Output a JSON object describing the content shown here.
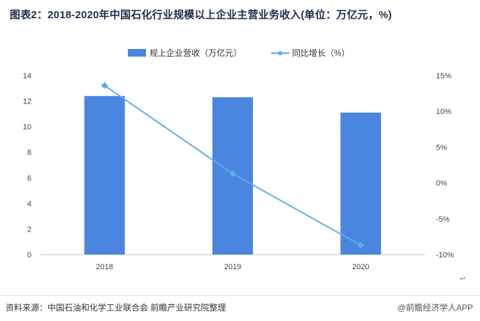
{
  "title": "图表2：2018-2020年中国石化行业规模以上企业主营业务收入(单位：万亿元，%)",
  "source": "资料来源：中国石油和化学工业联合会 前瞻产业研究院整理",
  "brand": "@前瞻经济学人APP",
  "return_mark": "↵",
  "colors": {
    "bar": "#4a86e0",
    "line": "#5aaee8"
  },
  "chart_data": {
    "type": "bar+line",
    "categories": [
      "2018",
      "2019",
      "2020"
    ],
    "series": [
      {
        "name": "规上企业营收（万亿元）",
        "type": "bar",
        "axis": "left",
        "values": [
          12.4,
          12.3,
          11.1
        ]
      },
      {
        "name": "同比增长（%）",
        "type": "line",
        "axis": "right",
        "values": [
          13.6,
          1.3,
          -8.7
        ]
      }
    ],
    "y_left": {
      "min": 0,
      "max": 14,
      "ticks": [
        "0",
        "2",
        "4",
        "6",
        "8",
        "10",
        "12",
        "14"
      ]
    },
    "y_right": {
      "min": -10,
      "max": 15,
      "ticks": [
        "-10%",
        "-5%",
        "0%",
        "5%",
        "10%",
        "15%"
      ]
    },
    "legend_position": "top-center",
    "grid": false
  }
}
